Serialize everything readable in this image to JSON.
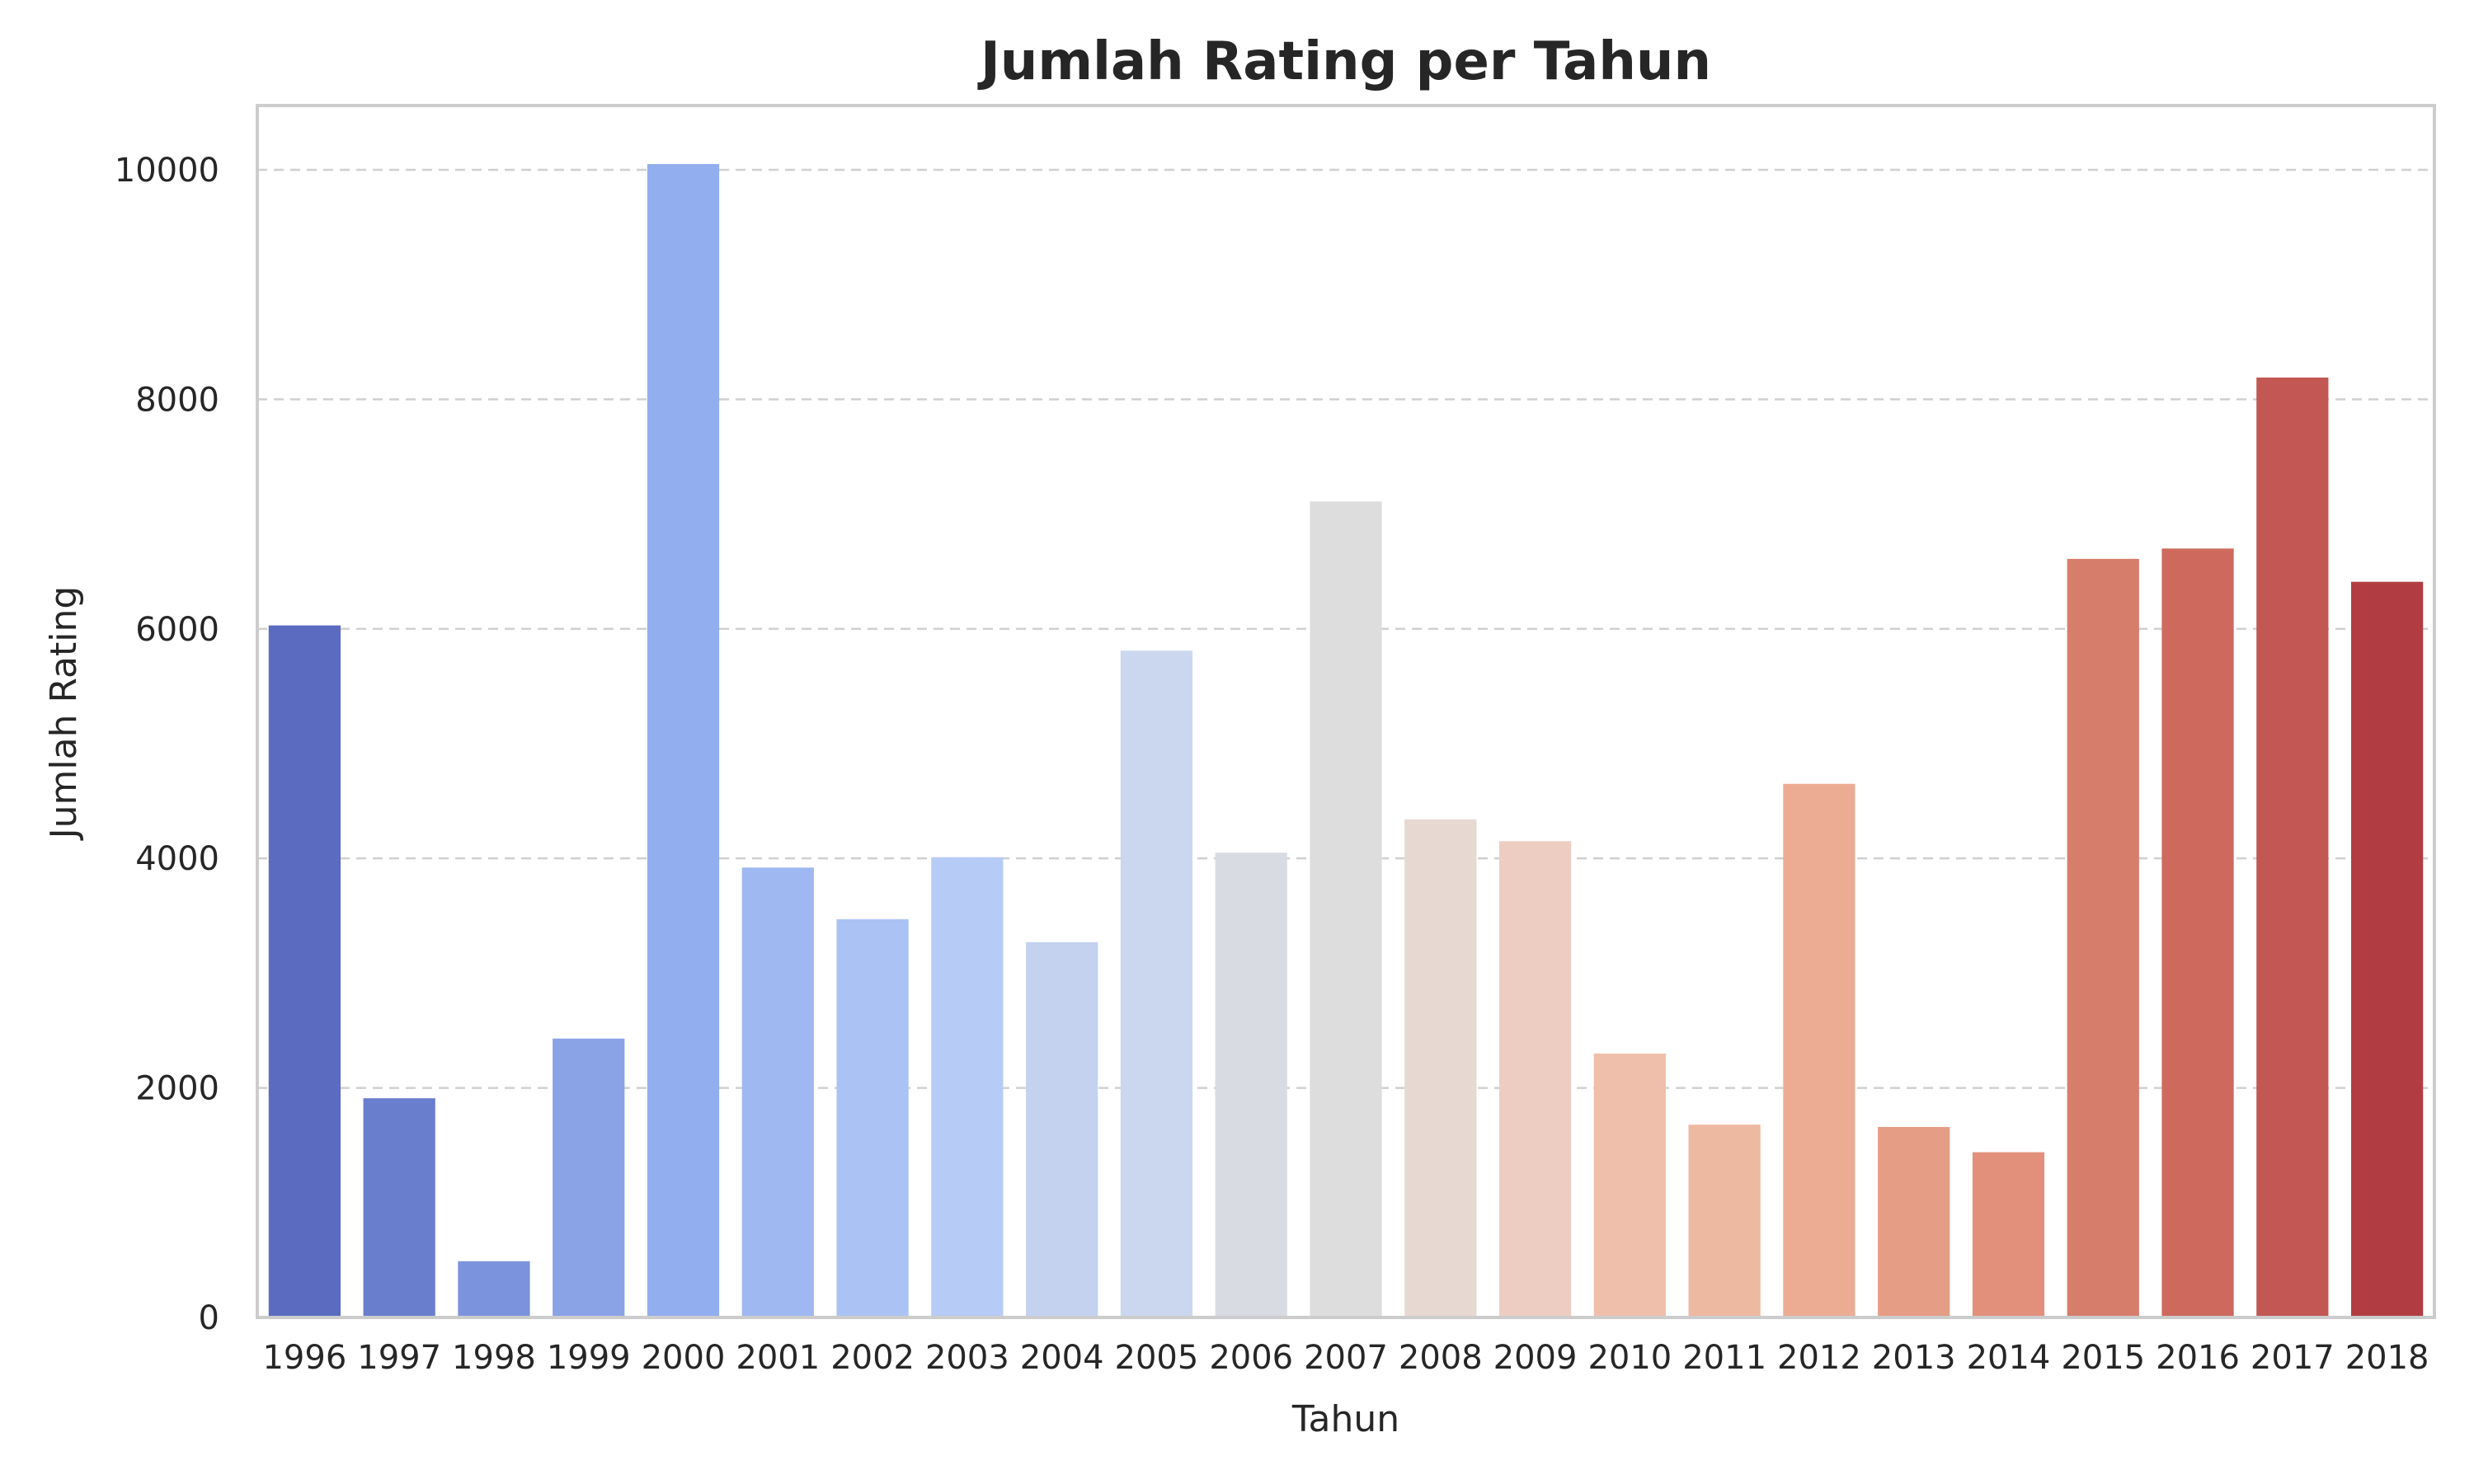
{
  "chart_data": {
    "type": "bar",
    "title": "Jumlah Rating per Tahun",
    "xlabel": "Tahun",
    "ylabel": "Jumlah Rating",
    "categories": [
      "1996",
      "1997",
      "1998",
      "1999",
      "2000",
      "2001",
      "2002",
      "2003",
      "2004",
      "2005",
      "2006",
      "2007",
      "2008",
      "2009",
      "2010",
      "2011",
      "2012",
      "2013",
      "2014",
      "2015",
      "2016",
      "2017",
      "2018"
    ],
    "values": [
      6030,
      1910,
      490,
      2430,
      10050,
      3920,
      3470,
      4010,
      3270,
      5810,
      4050,
      7110,
      4340,
      4150,
      2300,
      1680,
      4650,
      1660,
      1440,
      6610,
      6700,
      8190,
      6410
    ],
    "colors": [
      "#5a6bc0",
      "#6a7ece",
      "#7a93dc",
      "#8aa2e6",
      "#93aeee",
      "#9fb8f2",
      "#abc3f4",
      "#b6cbf6",
      "#c4d2f0",
      "#cbd7ee",
      "#d9dbe3",
      "#dddddd",
      "#e7d8d2",
      "#edcdc2",
      "#efbfab",
      "#eeb9a1",
      "#ebac93",
      "#e69d86",
      "#e2907c",
      "#d77d6b",
      "#cd6a5d",
      "#c25753",
      "#b13d43"
    ],
    "yticks": [
      0,
      2000,
      4000,
      6000,
      8000,
      10000
    ],
    "ylim": [
      0,
      10560
    ],
    "grid": true
  }
}
